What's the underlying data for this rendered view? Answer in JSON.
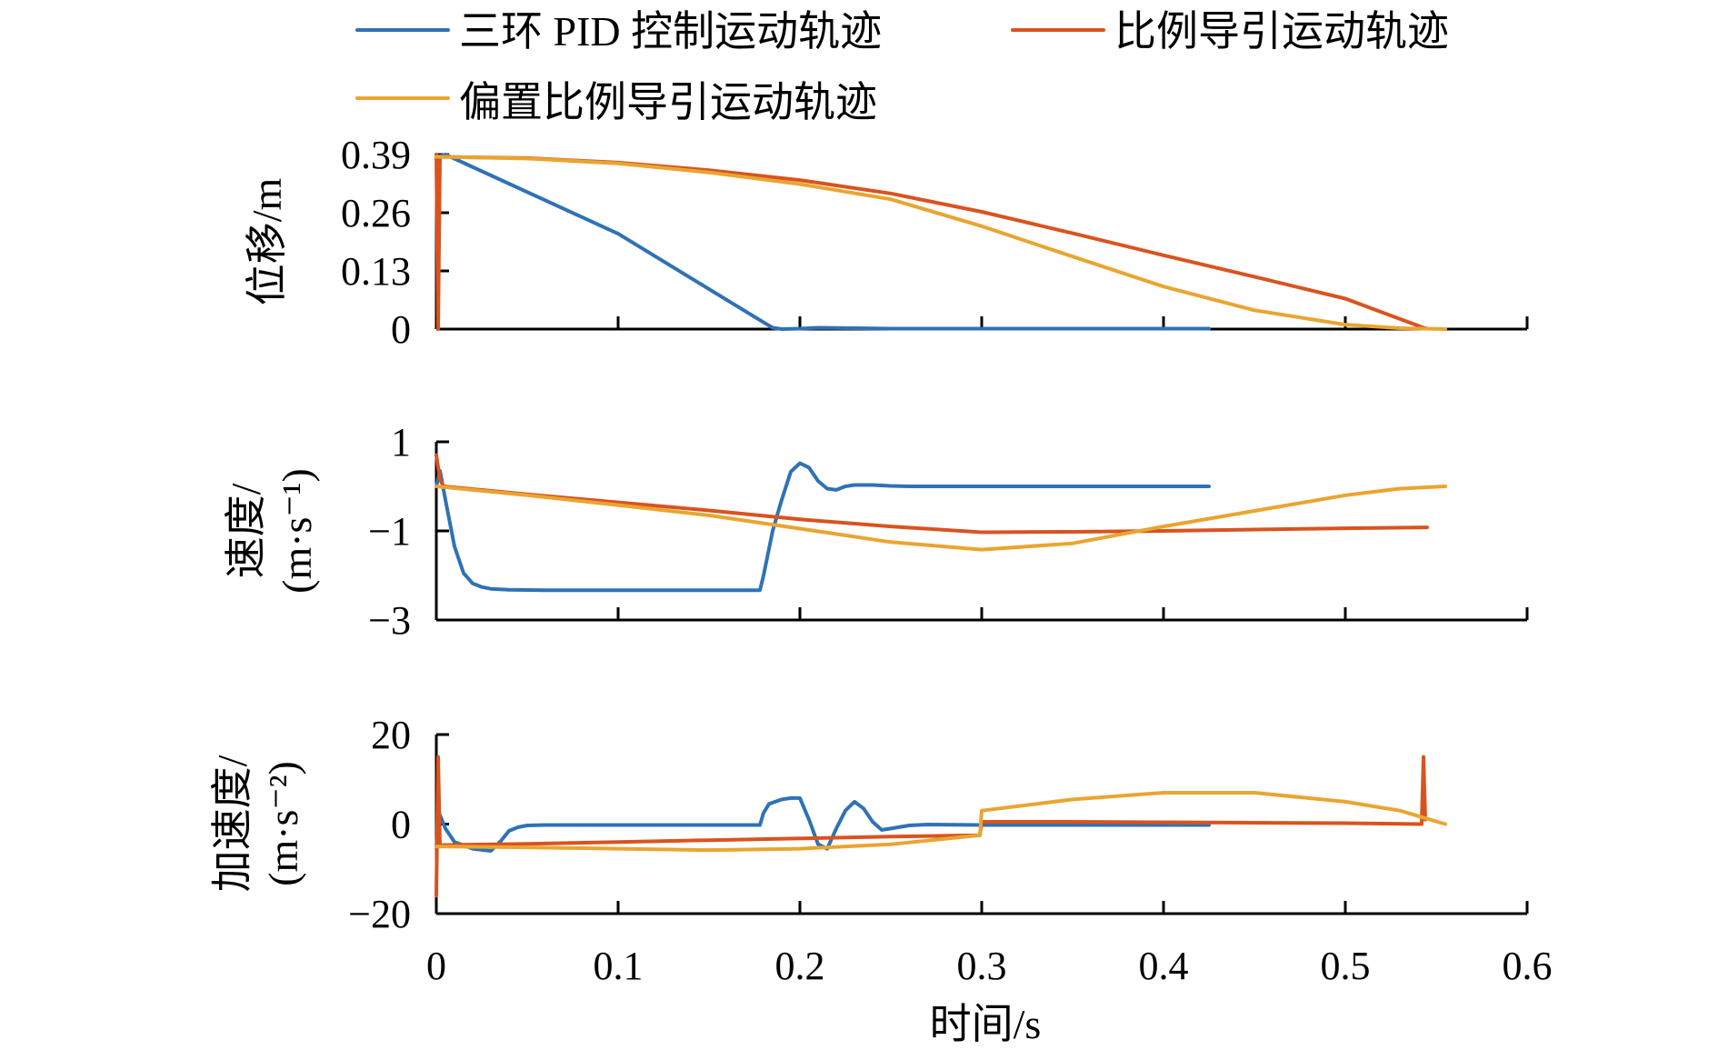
{
  "colors": {
    "pid": "#2f72b5",
    "pn": "#d9531f",
    "bpn": "#e9a531",
    "axis": "#000000"
  },
  "legend": [
    {
      "label": "三环 PID 控制运动轨迹",
      "color": "#2f72b5"
    },
    {
      "label": "比例导引运动轨迹",
      "color": "#d9531f"
    },
    {
      "label": "偏置比例导引运动轨迹",
      "color": "#e9a531"
    }
  ],
  "chart_data": [
    {
      "type": "line",
      "ylabel": "位移/m",
      "ylabel_lines": [
        "位移/m"
      ],
      "ylim": [
        0,
        0.39
      ],
      "yticks": [
        0,
        0.13,
        0.26,
        0.39
      ],
      "ytick_labels": [
        "0",
        "0.13",
        "0.26",
        "0.39"
      ],
      "xlim": [
        0,
        0.6
      ],
      "xticks": [
        0,
        0.1,
        0.2,
        0.3,
        0.4,
        0.5,
        0.6
      ],
      "series": [
        {
          "name": "三环 PID 控制运动轨迹",
          "color": "#2f72b5",
          "x": [
            0,
            0.001,
            0.005,
            0.1,
            0.18,
            0.185,
            0.19,
            0.2,
            0.21,
            0.25,
            0.35,
            0.425
          ],
          "y": [
            0.39,
            0.385,
            0.39,
            0.213,
            0.015,
            0.003,
            0.0,
            0.001,
            0.003,
            0.001,
            0.001,
            0.001
          ]
        },
        {
          "name": "比例导引运动轨迹",
          "color": "#d9531f",
          "x": [
            0,
            0.001,
            0.002,
            0.05,
            0.1,
            0.15,
            0.2,
            0.25,
            0.3,
            0.35,
            0.4,
            0.45,
            0.5,
            0.543,
            0.545
          ],
          "y": [
            0.39,
            0.0,
            0.385,
            0.382,
            0.372,
            0.355,
            0.333,
            0.303,
            0.262,
            0.214,
            0.165,
            0.117,
            0.068,
            0.003,
            0.001
          ]
        },
        {
          "name": "偏置比例导引运动轨迹",
          "color": "#e9a531",
          "x": [
            0,
            0.002,
            0.05,
            0.1,
            0.15,
            0.2,
            0.25,
            0.3,
            0.35,
            0.4,
            0.45,
            0.5,
            0.53,
            0.555
          ],
          "y": [
            0.385,
            0.385,
            0.381,
            0.37,
            0.35,
            0.324,
            0.29,
            0.23,
            0.162,
            0.095,
            0.042,
            0.01,
            0.002,
            0.0
          ]
        }
      ]
    },
    {
      "type": "line",
      "ylabel": "速度/(m·s⁻¹)",
      "ylabel_lines": [
        "速度/",
        "(m·s⁻¹)"
      ],
      "ylim": [
        -3,
        1
      ],
      "yticks": [
        -3,
        -1,
        1
      ],
      "ytick_labels": [
        "−3",
        "−1",
        "1"
      ],
      "xlim": [
        0,
        0.6
      ],
      "xticks": [
        0,
        0.1,
        0.2,
        0.3,
        0.4,
        0.5,
        0.6
      ],
      "series": [
        {
          "name": "三环 PID 控制运动轨迹",
          "color": "#2f72b5",
          "x": [
            0,
            0.002,
            0.005,
            0.01,
            0.015,
            0.02,
            0.025,
            0.03,
            0.04,
            0.06,
            0.1,
            0.14,
            0.178,
            0.18,
            0.185,
            0.19,
            0.195,
            0.2,
            0.205,
            0.21,
            0.215,
            0.22,
            0.225,
            0.23,
            0.24,
            0.25,
            0.26,
            0.3,
            0.35,
            0.425
          ],
          "y": [
            0.0,
            0.35,
            -0.3,
            -1.35,
            -1.95,
            -2.18,
            -2.26,
            -2.3,
            -2.32,
            -2.33,
            -2.33,
            -2.33,
            -2.33,
            -2.0,
            -1.0,
            -0.3,
            0.33,
            0.52,
            0.42,
            0.12,
            -0.05,
            -0.08,
            0.0,
            0.03,
            0.03,
            0.01,
            0.0,
            0.0,
            0.0,
            0.0
          ]
        },
        {
          "name": "比例导引运动轨迹",
          "color": "#d9531f",
          "x": [
            0,
            0.002,
            0.004,
            0.05,
            0.1,
            0.15,
            0.2,
            0.25,
            0.3,
            0.35,
            0.4,
            0.45,
            0.5,
            0.545
          ],
          "y": [
            0.7,
            0.15,
            0.0,
            -0.18,
            -0.36,
            -0.54,
            -0.74,
            -0.9,
            -1.03,
            -1.02,
            -1.0,
            -0.97,
            -0.94,
            -0.92
          ]
        },
        {
          "name": "偏置比例导引运动轨迹",
          "color": "#e9a531",
          "x": [
            0,
            0.05,
            0.1,
            0.15,
            0.2,
            0.25,
            0.3,
            0.35,
            0.4,
            0.45,
            0.5,
            0.53,
            0.555
          ],
          "y": [
            0.0,
            -0.2,
            -0.42,
            -0.65,
            -0.95,
            -1.25,
            -1.42,
            -1.28,
            -0.9,
            -0.55,
            -0.2,
            -0.05,
            0.0
          ]
        }
      ]
    },
    {
      "type": "line",
      "ylabel": "加速度/(m·s⁻²)",
      "ylabel_lines": [
        "加速度/",
        "(m·s⁻²)"
      ],
      "ylim": [
        -20,
        20
      ],
      "yticks": [
        -20,
        0,
        20
      ],
      "ytick_labels": [
        "−20",
        "0",
        "20"
      ],
      "xlim": [
        0,
        0.6
      ],
      "xticks": [
        0,
        0.1,
        0.2,
        0.3,
        0.4,
        0.5,
        0.6
      ],
      "xtick_labels": [
        "0",
        "0.1",
        "0.2",
        "0.3",
        "0.4",
        "0.5",
        "0.6"
      ],
      "xlabel": "时间/s",
      "series": [
        {
          "name": "三环 PID 控制运动轨迹",
          "color": "#2f72b5",
          "x": [
            0,
            0.002,
            0.005,
            0.01,
            0.02,
            0.03,
            0.035,
            0.04,
            0.045,
            0.05,
            0.06,
            0.1,
            0.178,
            0.18,
            0.183,
            0.19,
            0.195,
            0.2,
            0.205,
            0.21,
            0.215,
            0.22,
            0.225,
            0.23,
            0.235,
            0.24,
            0.245,
            0.25,
            0.26,
            0.27,
            0.3,
            0.35,
            0.425
          ],
          "y": [
            -5,
            2,
            -1,
            -4,
            -5.5,
            -6,
            -4,
            -1.5,
            -0.7,
            -0.3,
            -0.2,
            -0.2,
            -0.2,
            2.5,
            4.5,
            5.5,
            5.8,
            5.8,
            1.0,
            -4.5,
            -5.5,
            -1.0,
            3.0,
            5.0,
            3.5,
            0.5,
            -1.3,
            -1.0,
            -0.3,
            -0.1,
            -0.2,
            -0.2,
            -0.2
          ]
        },
        {
          "name": "比例导引运动轨迹",
          "color": "#d9531f",
          "x": [
            0,
            0.001,
            0.002,
            0.003,
            0.05,
            0.1,
            0.15,
            0.2,
            0.25,
            0.299,
            0.3,
            0.35,
            0.4,
            0.45,
            0.5,
            0.542,
            0.543,
            0.544
          ],
          "y": [
            -16,
            15,
            -5,
            -4.7,
            -4.4,
            -4.0,
            -3.6,
            -3.2,
            -2.8,
            -2.5,
            0.5,
            0.5,
            0.4,
            0.3,
            0.2,
            0.0,
            15,
            1
          ]
        },
        {
          "name": "偏置比例导引运动轨迹",
          "color": "#e9a531",
          "x": [
            0,
            0.05,
            0.1,
            0.15,
            0.2,
            0.25,
            0.299,
            0.3,
            0.35,
            0.4,
            0.45,
            0.5,
            0.53,
            0.555
          ],
          "y": [
            -5,
            -5.2,
            -5.5,
            -5.8,
            -5.5,
            -4.5,
            -2.5,
            3.0,
            5.5,
            7.0,
            7.0,
            5.0,
            3.0,
            0.0
          ]
        }
      ]
    }
  ]
}
